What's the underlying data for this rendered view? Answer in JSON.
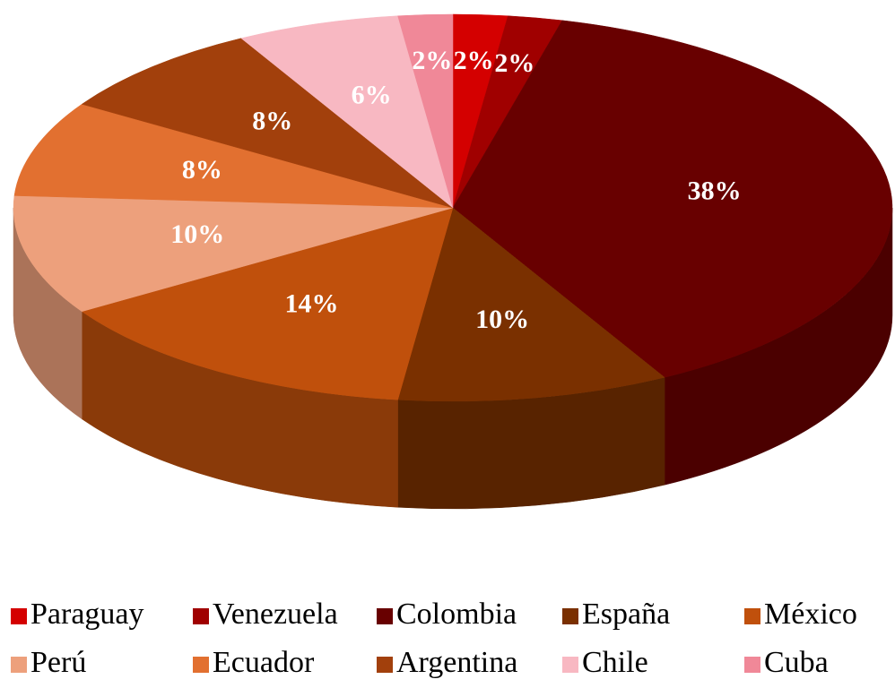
{
  "chart_data": {
    "type": "pie",
    "categories": [
      "Paraguay",
      "Venezuela",
      "Colombia",
      "España",
      "México",
      "Perú",
      "Ecuador",
      "Argentina",
      "Chile",
      "Cuba"
    ],
    "values": [
      2,
      2,
      38,
      10,
      14,
      10,
      8,
      8,
      6,
      2
    ],
    "value_labels": [
      "2%",
      "2%",
      "38%",
      "10%",
      "14%",
      "10%",
      "8%",
      "8%",
      "6%",
      "2%"
    ],
    "colors": [
      "#d40000",
      "#a00000",
      "#680000",
      "#7a3000",
      "#c0500c",
      "#eda07c",
      "#e27030",
      "#a2400c",
      "#f8b8c2",
      "#f08898"
    ]
  }
}
